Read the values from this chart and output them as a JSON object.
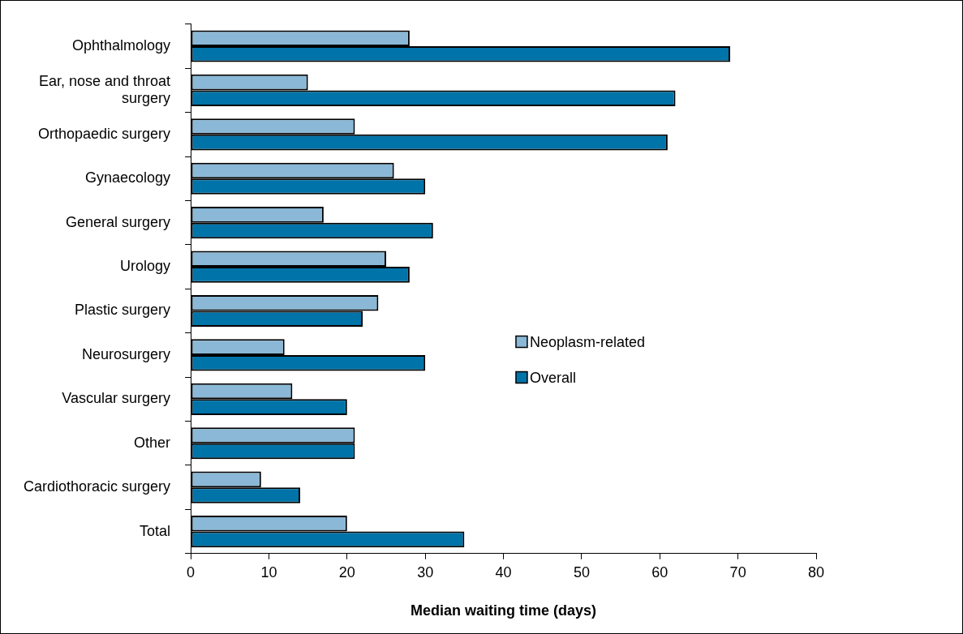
{
  "chart_data": {
    "type": "bar",
    "orientation": "horizontal",
    "xlabel": "Median waiting time (days)",
    "categories": [
      "Ophthalmology",
      "Ear, nose and throat surgery",
      "Orthopaedic surgery",
      "Gynaecology",
      "General surgery",
      "Urology",
      "Plastic surgery",
      "Neurosurgery",
      "Vascular surgery",
      "Other",
      "Cardiothoracic surgery",
      "Total"
    ],
    "series": [
      {
        "name": "Neoplasm-related",
        "color": "#8ab8d6",
        "values": [
          28,
          15,
          21,
          26,
          17,
          25,
          24,
          12,
          13,
          21,
          9,
          20
        ]
      },
      {
        "name": "Overall",
        "color": "#0073a8",
        "values": [
          69,
          62,
          61,
          30,
          31,
          28,
          22,
          30,
          20,
          21,
          14,
          35
        ]
      }
    ],
    "xlim": [
      0,
      80
    ],
    "xticks": [
      0,
      10,
      20,
      30,
      40,
      50,
      60,
      70,
      80
    ],
    "grid": false,
    "legend": "right"
  }
}
